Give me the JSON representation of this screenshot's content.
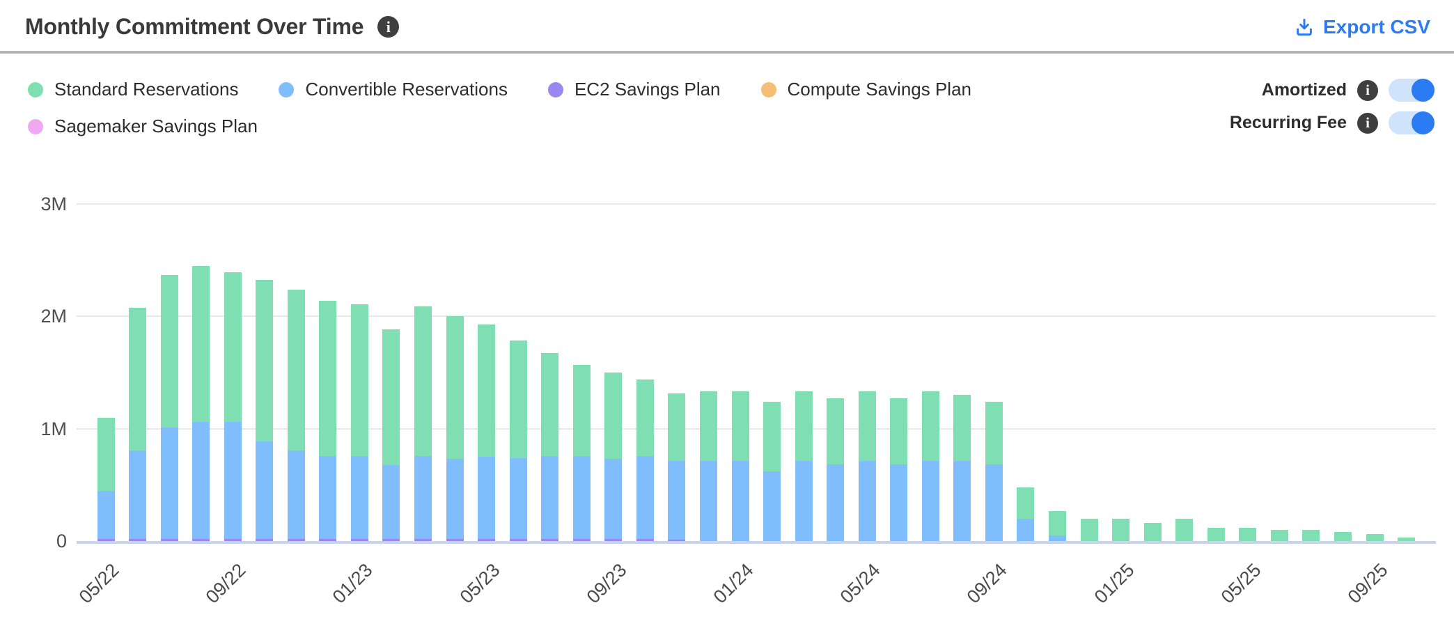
{
  "header": {
    "title": "Monthly Commitment Over Time",
    "export_label": "Export CSV"
  },
  "colors": {
    "accent_blue": "#2b7bf1",
    "toggle_track": "#cfe3fb",
    "toggle_knob": "#2b7bf3",
    "info_icon_bg": "#3f3f3f",
    "gridline": "#e9e9e9",
    "axis_baseline": "#c9d3ee",
    "axis_text": "#4a4a4a",
    "title_text": "#3a3a3a"
  },
  "toggles": [
    {
      "label": "Amortized",
      "state": "on"
    },
    {
      "label": "Recurring Fee",
      "state": "on"
    }
  ],
  "chart_data": {
    "type": "bar",
    "stacked": true,
    "title": "Monthly Commitment Over Time",
    "xlabel": "",
    "ylabel": "",
    "ylim": [
      0,
      3000000
    ],
    "grid": true,
    "legend_position": "top-left",
    "units": "millions USD",
    "y_tick_labels": [
      "0",
      "1M",
      "2M",
      "3M"
    ],
    "y_tick_values_millions": [
      0,
      1,
      2,
      3
    ],
    "x_tick_labels": [
      "05/22",
      "09/22",
      "01/23",
      "05/23",
      "09/23",
      "01/24",
      "05/24",
      "09/24",
      "01/25",
      "05/25",
      "09/25"
    ],
    "x_tick_every": 4,
    "x": [
      "05/22",
      "06/22",
      "07/22",
      "08/22",
      "09/22",
      "10/22",
      "11/22",
      "12/22",
      "01/23",
      "02/23",
      "03/23",
      "04/23",
      "05/23",
      "06/23",
      "07/23",
      "08/23",
      "09/23",
      "10/23",
      "11/23",
      "12/23",
      "01/24",
      "02/24",
      "03/24",
      "04/24",
      "05/24",
      "06/24",
      "07/24",
      "08/24",
      "09/24",
      "10/24",
      "11/24",
      "12/24",
      "01/25",
      "02/25",
      "03/25",
      "04/25",
      "05/25",
      "06/25",
      "07/25",
      "08/25",
      "09/25",
      "10/25"
    ],
    "series": [
      {
        "name": "Standard Reservations",
        "color": "#7fdfb2",
        "values_millions": [
          0.65,
          1.27,
          1.36,
          1.39,
          1.33,
          1.44,
          1.43,
          1.38,
          1.35,
          1.21,
          1.33,
          1.27,
          1.18,
          1.05,
          0.92,
          0.81,
          0.77,
          0.68,
          0.6,
          0.62,
          0.62,
          0.62,
          0.62,
          0.59,
          0.62,
          0.59,
          0.62,
          0.59,
          0.56,
          0.28,
          0.22,
          0.2,
          0.2,
          0.16,
          0.2,
          0.12,
          0.12,
          0.1,
          0.1,
          0.08,
          0.06,
          0.03
        ]
      },
      {
        "name": "Convertible Reservations",
        "color": "#7fbdfc",
        "values_millions": [
          0.43,
          0.79,
          0.99,
          1.04,
          1.04,
          0.87,
          0.79,
          0.74,
          0.74,
          0.66,
          0.74,
          0.71,
          0.73,
          0.72,
          0.74,
          0.74,
          0.71,
          0.74,
          0.7,
          0.71,
          0.71,
          0.62,
          0.71,
          0.68,
          0.71,
          0.68,
          0.71,
          0.71,
          0.68,
          0.2,
          0.05,
          0,
          0,
          0,
          0,
          0,
          0,
          0,
          0,
          0,
          0,
          0
        ]
      },
      {
        "name": "EC2 Savings Plan",
        "color": "#9b87f0",
        "values_millions": [
          0.02,
          0.02,
          0.02,
          0.02,
          0.02,
          0.02,
          0.02,
          0.02,
          0.02,
          0.02,
          0.02,
          0.02,
          0.02,
          0.02,
          0.02,
          0.02,
          0.02,
          0.02,
          0.01,
          0,
          0,
          0,
          0,
          0,
          0,
          0,
          0,
          0,
          0,
          0,
          0,
          0,
          0,
          0,
          0,
          0,
          0,
          0,
          0,
          0,
          0,
          0
        ]
      },
      {
        "name": "Compute Savings Plan",
        "color": "#f4be76",
        "values_millions": [
          0,
          0,
          0,
          0,
          0,
          0,
          0,
          0,
          0,
          0,
          0,
          0,
          0,
          0,
          0,
          0,
          0,
          0,
          0,
          0,
          0,
          0,
          0,
          0,
          0,
          0,
          0,
          0,
          0,
          0,
          0,
          0,
          0,
          0,
          0,
          0,
          0,
          0,
          0,
          0,
          0,
          0
        ]
      },
      {
        "name": "Sagemaker Savings Plan",
        "color": "#efa9f0",
        "values_millions": [
          0,
          0,
          0,
          0,
          0,
          0,
          0,
          0,
          0,
          0,
          0,
          0,
          0,
          0,
          0,
          0,
          0,
          0,
          0,
          0,
          0,
          0,
          0,
          0,
          0,
          0,
          0,
          0,
          0,
          0,
          0,
          0,
          0,
          0,
          0,
          0,
          0,
          0,
          0,
          0,
          0,
          0
        ]
      }
    ]
  }
}
